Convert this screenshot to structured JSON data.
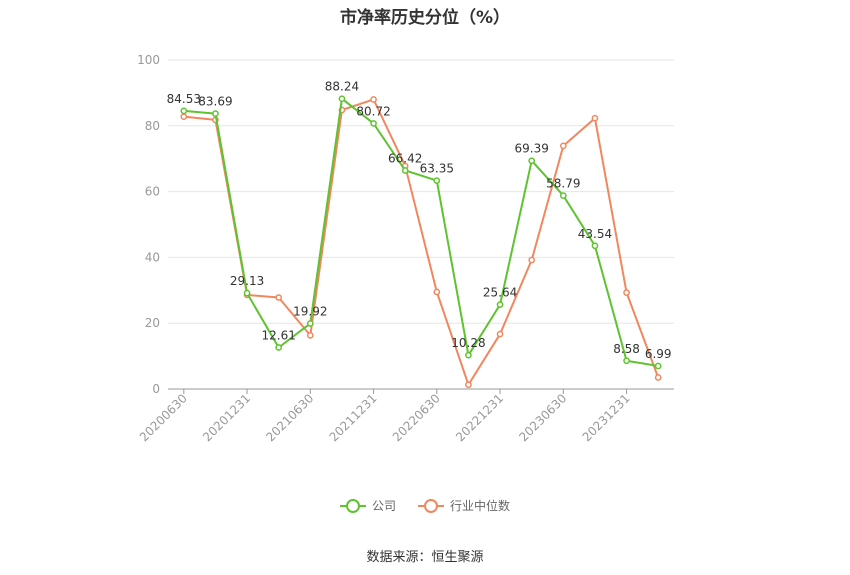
{
  "title": "市净率历史分位（%）",
  "source": "数据来源：恒生聚源",
  "chart_data": {
    "type": "line",
    "categories": [
      "20200630",
      "20201231",
      "20210630",
      "20211231",
      "20220630",
      "20221231",
      "20230630",
      "20231231"
    ],
    "x": [
      "20200630",
      "20200930",
      "20201231",
      "20210331",
      "20210630",
      "20210930",
      "20211231",
      "20220331",
      "20220630",
      "20220930",
      "20221231",
      "20230331",
      "20230630",
      "20230930",
      "20231231",
      "20240331"
    ],
    "ylim": [
      0,
      100
    ],
    "yticks": [
      "0",
      "20",
      "40",
      "60",
      "80",
      "100"
    ],
    "grid": true,
    "legend_position": "bottom",
    "series": [
      {
        "name": "公司",
        "color": "#5ec32f",
        "values": [
          84.53,
          83.69,
          29.13,
          12.61,
          19.92,
          88.24,
          80.72,
          66.42,
          63.35,
          10.28,
          25.64,
          69.39,
          58.79,
          43.54,
          8.58,
          6.99
        ],
        "labels": [
          "84.53",
          "83.69",
          "29.13",
          "12.61",
          "19.92",
          "88.24",
          "80.72",
          "66.42",
          "63.35",
          "10.28",
          "25.64",
          "69.39",
          "58.79",
          "43.54",
          "8.58",
          "6.99"
        ]
      },
      {
        "name": "行业中位数",
        "color": "#f0875e",
        "values": [
          82.8,
          81.8,
          28.6,
          27.8,
          16.3,
          84.8,
          88.0,
          67.8,
          29.5,
          1.3,
          16.7,
          39.2,
          73.9,
          82.3,
          29.3,
          3.5
        ]
      }
    ]
  }
}
